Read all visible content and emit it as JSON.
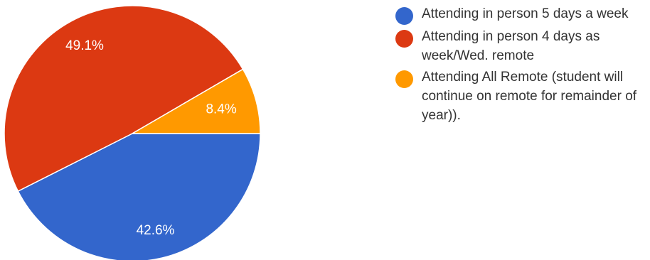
{
  "chart_data": {
    "type": "pie",
    "title": "",
    "legend_position": "right",
    "slices": [
      {
        "label": "Attending in person 5 days a week",
        "value": 42.6,
        "display": "42.6%",
        "color": "#3366cc"
      },
      {
        "label": "Attending in person 4 days as week/Wed. remote",
        "value": 49.1,
        "display": "49.1%",
        "color": "#dc3912"
      },
      {
        "label": "Attending All Remote (student will continue on remote for remainder of year)).",
        "value": 8.4,
        "display": "8.4%",
        "color": "#ff9900"
      }
    ]
  }
}
